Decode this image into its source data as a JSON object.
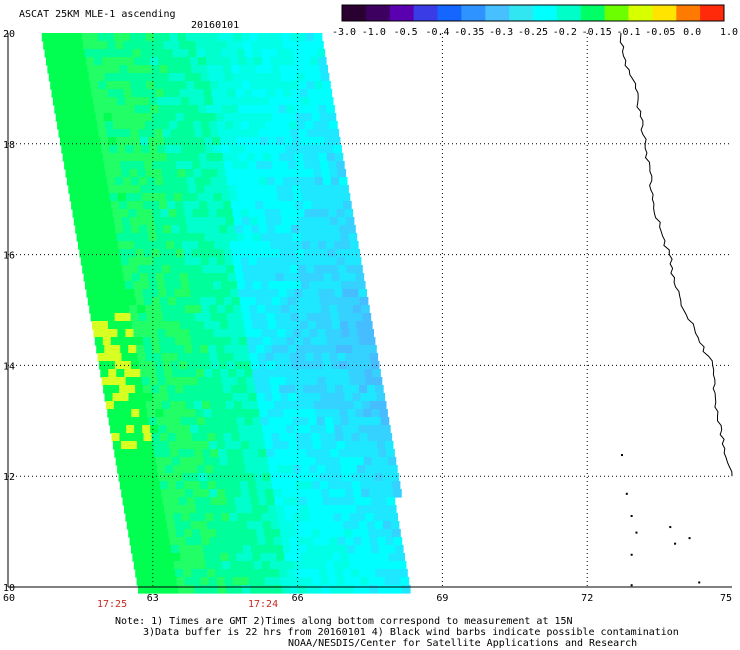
{
  "header": {
    "title": "ASCAT 25KM MLE-1 ascending",
    "date": "20160101"
  },
  "colorbar": {
    "colors": [
      "#2a0030",
      "#3d0060",
      "#5a00b0",
      "#3a3ce6",
      "#1565ff",
      "#2f93ff",
      "#48c0ff",
      "#31e6f0",
      "#00ffff",
      "#00ffc8",
      "#00ff66",
      "#6cff00",
      "#d8ff00",
      "#ffe400",
      "#ff7a00",
      "#ff2a0a"
    ],
    "tick_labels": [
      "-3.0",
      "-1.0",
      "-0.5",
      "-0.4",
      "-0.35",
      "-0.3",
      "-0.25",
      "-0.2",
      "-0.15",
      "-0.1",
      "-0.05",
      "0.0",
      "1.0"
    ]
  },
  "chart_data": {
    "type": "heatmap",
    "title": "ASCAT 25KM MLE-1 ascending",
    "xlim": [
      60,
      75
    ],
    "ylim": [
      10,
      20
    ],
    "x_ticks": [
      "60",
      "63",
      "66",
      "69",
      "72",
      "75"
    ],
    "y_ticks": [
      "10",
      "12",
      "14",
      "16",
      "18",
      "20"
    ],
    "grid": true,
    "swath_corners": [
      [
        60.7,
        20
      ],
      [
        66.5,
        20
      ],
      [
        68.3,
        10
      ],
      [
        62.7,
        10
      ]
    ],
    "pass_times": [
      {
        "label": "17:25",
        "lon": 62.1
      },
      {
        "label": "17:24",
        "lon": 65.2
      }
    ],
    "coastline_points": [
      [
        72.7,
        20
      ],
      [
        72.8,
        19.5
      ],
      [
        73.0,
        19.0
      ],
      [
        73.1,
        18.5
      ],
      [
        73.2,
        18.0
      ],
      [
        73.3,
        17.5
      ],
      [
        73.35,
        17.0
      ],
      [
        73.5,
        16.5
      ],
      [
        73.7,
        16.0
      ],
      [
        73.8,
        15.5
      ],
      [
        74.0,
        15.0
      ],
      [
        74.3,
        14.5
      ],
      [
        74.6,
        14.0
      ],
      [
        74.65,
        13.5
      ],
      [
        74.7,
        13.0
      ],
      [
        74.85,
        12.5
      ],
      [
        75.0,
        12.0
      ]
    ],
    "islands": [
      [
        72.7,
        12.4
      ],
      [
        72.8,
        11.7
      ],
      [
        72.9,
        11.3
      ],
      [
        73.0,
        11.0
      ],
      [
        73.7,
        11.1
      ],
      [
        74.1,
        10.9
      ],
      [
        72.9,
        10.6
      ],
      [
        73.8,
        10.8
      ],
      [
        72.9,
        10.05
      ],
      [
        74.3,
        10.1
      ]
    ]
  },
  "footer": {
    "note_line1": "Note: 1) Times are GMT 2)Times along bottom correspond to measurement at 15N",
    "note_line2": "3)Data buffer is 22 hrs from 20160101 4) Black wind barbs indicate possible contamination",
    "note_line3": "NOAA/NESDIS/Center for Satellite Applications and Research"
  }
}
